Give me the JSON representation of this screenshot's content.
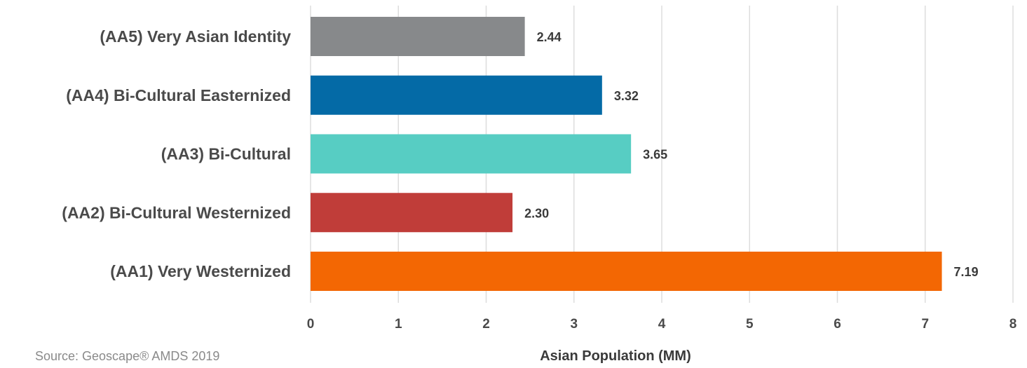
{
  "chart_data": {
    "type": "bar",
    "orientation": "horizontal",
    "categories": [
      "(AA5) Very Asian Identity",
      "(AA4) Bi-Cultural Easternized",
      "(AA3) Bi-Cultural",
      "(AA2) Bi-Cultural Westernized",
      "(AA1) Very Westernized"
    ],
    "values": [
      2.44,
      3.32,
      3.65,
      2.3,
      7.19
    ],
    "value_labels": [
      "2.44",
      "3.32",
      "3.65",
      "2.30",
      "7.19"
    ],
    "colors": [
      "#87898b",
      "#046aa6",
      "#57cdc3",
      "#c03d39",
      "#f36703"
    ],
    "xlabel": "Asian Population (MM)",
    "ylabel": "",
    "xlim": [
      0,
      8
    ],
    "xticks": [
      "0",
      "1",
      "2",
      "3",
      "4",
      "5",
      "6",
      "7",
      "8"
    ],
    "grid": true,
    "legend": "none"
  },
  "source": "Source: Geoscape® AMDS 2019"
}
